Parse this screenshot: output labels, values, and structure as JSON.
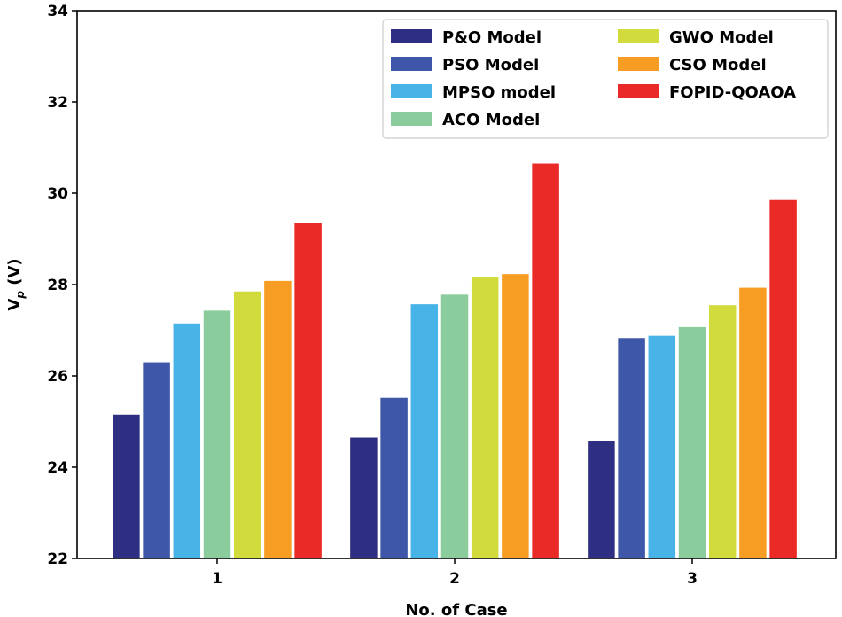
{
  "chart_data": {
    "type": "bar",
    "title": "",
    "xlabel": "No. of Case",
    "ylabel": "V",
    "ylabel_subscript": "p",
    "ylabel_unit": " (V)",
    "categories": [
      "1",
      "2",
      "3"
    ],
    "ylim": [
      22,
      34
    ],
    "yticks": [
      22,
      24,
      26,
      28,
      30,
      32,
      34
    ],
    "grid": false,
    "legend_position": "top-right",
    "series": [
      {
        "name": "P&O Model",
        "color": "#2e2e82",
        "values": [
          25.15,
          24.65,
          24.58
        ]
      },
      {
        "name": "PSO Model",
        "color": "#3f57a8",
        "values": [
          26.3,
          25.52,
          26.83
        ]
      },
      {
        "name": "MPSO model",
        "color": "#47b3e6",
        "values": [
          27.15,
          27.57,
          26.88
        ]
      },
      {
        "name": "ACO Model",
        "color": "#8acc9b",
        "values": [
          27.43,
          27.78,
          27.07
        ]
      },
      {
        "name": "GWO Model",
        "color": "#d2db3c",
        "values": [
          27.85,
          28.17,
          27.55
        ]
      },
      {
        "name": "CSO Model",
        "color": "#f79d24",
        "values": [
          28.08,
          28.23,
          27.93
        ]
      },
      {
        "name": "FOPID-QOAOA",
        "color": "#ea2a26",
        "values": [
          29.35,
          30.65,
          29.85
        ]
      }
    ]
  }
}
